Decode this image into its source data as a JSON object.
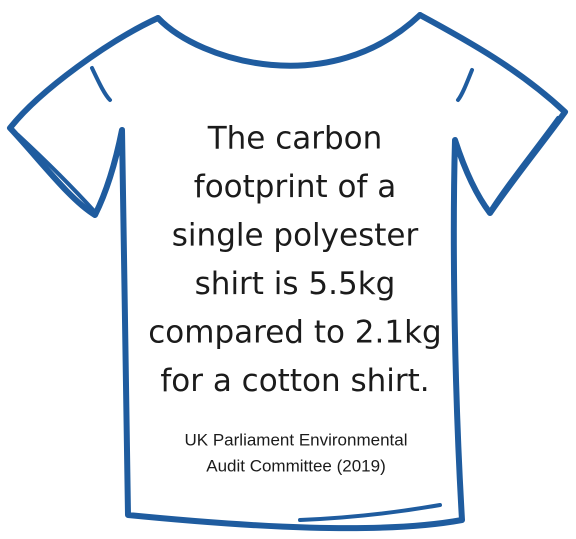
{
  "statement": {
    "lines": [
      "The carbon",
      "footprint of a",
      "single polyester",
      "shirt is 5.5kg",
      "compared to 2.1kg",
      "for a cotton shirt."
    ]
  },
  "source": {
    "lines": [
      "UK Parliament Environmental",
      "Audit Committee (2019)"
    ]
  }
}
